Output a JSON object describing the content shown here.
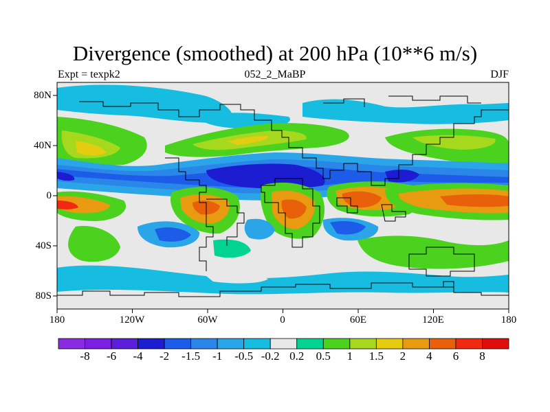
{
  "title": "Divergence (smoothed) at 200 hPa (10**6 m/s)",
  "subtitle_left": "Expt = texpk2",
  "subtitle_center": "052_2_MaBP",
  "subtitle_right": "DJF",
  "chart_data": {
    "type": "heatmap",
    "variable": "Divergence (smoothed) at 200 hPa",
    "units": "10**6 m/s",
    "x_axis": {
      "range": [
        -180,
        180
      ],
      "ticks": [
        {
          "value": -180,
          "label": "180"
        },
        {
          "value": -120,
          "label": "120W"
        },
        {
          "value": -60,
          "label": "60W"
        },
        {
          "value": 0,
          "label": "0"
        },
        {
          "value": 60,
          "label": "60E"
        },
        {
          "value": 120,
          "label": "120E"
        },
        {
          "value": 180,
          "label": "180"
        }
      ]
    },
    "y_axis": {
      "range": [
        -90,
        90
      ],
      "ticks": [
        {
          "value": 80,
          "label": "80N"
        },
        {
          "value": 40,
          "label": "40N"
        },
        {
          "value": 0,
          "label": "0"
        },
        {
          "value": -40,
          "label": "40S"
        },
        {
          "value": -80,
          "label": "80S"
        }
      ]
    },
    "colorbar": {
      "levels": [
        "-8",
        "-6",
        "-4",
        "-2",
        "-1.5",
        "-1",
        "-0.5",
        "-0.2",
        "0.2",
        "0.5",
        "1",
        "1.5",
        "2",
        "4",
        "6",
        "8"
      ],
      "colors": [
        "#8a2be2",
        "#7b1fe0",
        "#5b1ed8",
        "#1c1cd0",
        "#1c5ce8",
        "#2a86e8",
        "#2aa6e8",
        "#16bde0",
        "#e8e8e8",
        "#00d490",
        "#4ad21e",
        "#a6d81e",
        "#e6cc10",
        "#e89a10",
        "#e8600a",
        "#f02a10",
        "#e00c0c"
      ]
    },
    "features": [
      {
        "name": "equatorial-convergence-band",
        "lon": [
          -170,
          120
        ],
        "lat": [
          5,
          25
        ],
        "value": -2
      },
      {
        "name": "tropical-divergence-pacific",
        "lon": [
          120,
          180
        ],
        "lat": [
          -20,
          5
        ],
        "value": 4
      },
      {
        "name": "tropical-divergence-eastpacific",
        "lon": [
          -180,
          -150
        ],
        "lat": [
          -20,
          0
        ],
        "value": 6
      },
      {
        "name": "divergence-south-america",
        "lon": [
          -75,
          -40
        ],
        "lat": [
          -25,
          0
        ],
        "value": 4
      },
      {
        "name": "divergence-africa",
        "lon": [
          0,
          35
        ],
        "lat": [
          -20,
          5
        ],
        "value": 4
      },
      {
        "name": "divergence-indian-ocean",
        "lon": [
          50,
          80
        ],
        "lat": [
          -10,
          5
        ],
        "value": 6
      },
      {
        "name": "divergence-north-atlantic",
        "lon": [
          -60,
          40
        ],
        "lat": [
          35,
          55
        ],
        "value": 2
      },
      {
        "name": "divergence-north-pacific",
        "lon": [
          -180,
          -130
        ],
        "lat": [
          25,
          50
        ],
        "value": 2
      }
    ]
  }
}
